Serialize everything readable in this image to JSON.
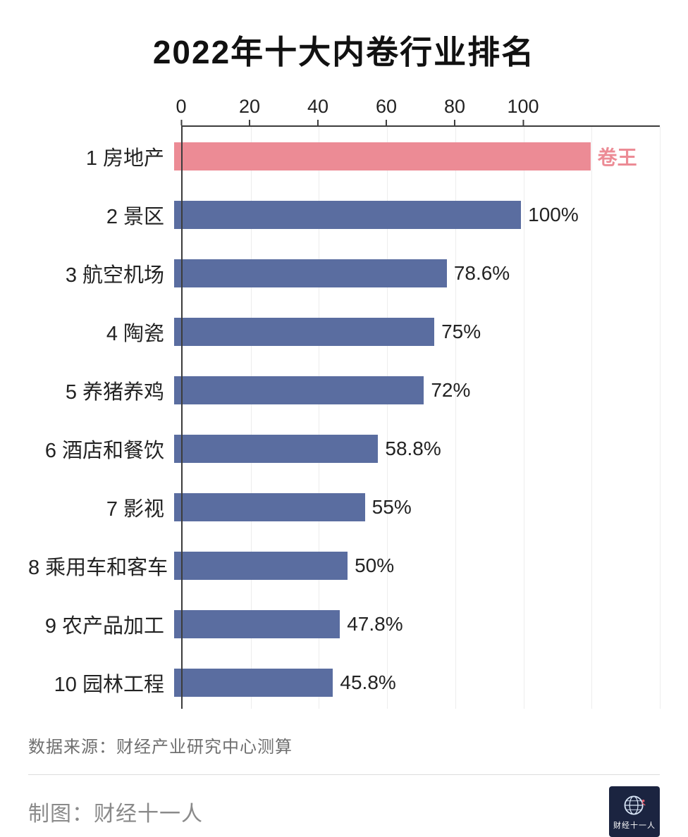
{
  "chart_data": {
    "type": "bar",
    "orientation": "horizontal",
    "title": "2022年十大内卷行业排名",
    "xlabel": "",
    "ylabel": "",
    "axis": {
      "position": "top",
      "tick_values": [
        0,
        20,
        40,
        60,
        80,
        100
      ],
      "max": 140,
      "grid": true
    },
    "bar_color": "#5a6da0",
    "highlight_color": "#ec8b95",
    "categories": [
      "1 房地产",
      "2 景区",
      "3 航空机场",
      "4 陶瓷",
      "5 养猪养鸡",
      "6 酒店和餐饮",
      "7 影视",
      "8 乘用车和客车",
      "9 农产品加工",
      "10 园林工程"
    ],
    "bars": [
      {
        "category": "1 房地产",
        "value": 120,
        "label": "卷王",
        "highlight": true
      },
      {
        "category": "2 景区",
        "value": 100,
        "label": "100%",
        "highlight": false
      },
      {
        "category": "3 航空机场",
        "value": 78.6,
        "label": "78.6%",
        "highlight": false
      },
      {
        "category": "4 陶瓷",
        "value": 75,
        "label": "75%",
        "highlight": false
      },
      {
        "category": "5 养猪养鸡",
        "value": 72,
        "label": "72%",
        "highlight": false
      },
      {
        "category": "6 酒店和餐饮",
        "value": 58.8,
        "label": "58.8%",
        "highlight": false
      },
      {
        "category": "7 影视",
        "value": 55,
        "label": "55%",
        "highlight": false
      },
      {
        "category": "8 乘用车和客车",
        "value": 50,
        "label": "50%",
        "highlight": false
      },
      {
        "category": "9 农产品加工",
        "value": 47.8,
        "label": "47.8%",
        "highlight": false
      },
      {
        "category": "10 园林工程",
        "value": 45.8,
        "label": "45.8%",
        "highlight": false
      }
    ],
    "legend": false
  },
  "footer": {
    "source": "数据来源：财经产业研究中心测算",
    "credit": "制图：财经十一人",
    "logo_text": "财经十一人"
  }
}
